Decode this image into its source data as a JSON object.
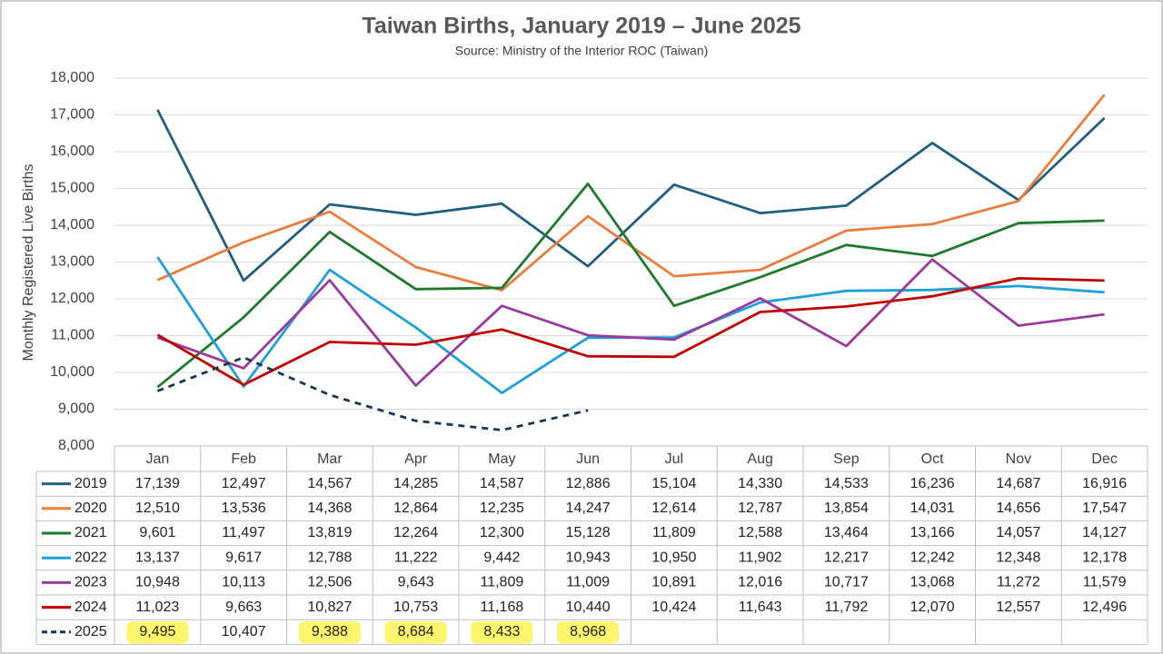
{
  "chart_data": {
    "type": "line",
    "title": "Taiwan Births, January 2019 – June 2025",
    "subtitle": "Source: Ministry of the Interior ROC (Taiwan)",
    "y_label": "Monthly Registered Live Births",
    "categories": [
      "Jan",
      "Feb",
      "Mar",
      "Apr",
      "May",
      "Jun",
      "Jul",
      "Aug",
      "Sep",
      "Oct",
      "Nov",
      "Dec"
    ],
    "ylim": [
      8000,
      18000
    ],
    "yticks": [
      {
        "value": 8000,
        "label": "8,000"
      },
      {
        "value": 9000,
        "label": "9,000"
      },
      {
        "value": 10000,
        "label": "10,000"
      },
      {
        "value": 11000,
        "label": "11,000"
      },
      {
        "value": 12000,
        "label": "12,000"
      },
      {
        "value": 13000,
        "label": "13,000"
      },
      {
        "value": 14000,
        "label": "14,000"
      },
      {
        "value": 15000,
        "label": "15,000"
      },
      {
        "value": 16000,
        "label": "16,000"
      },
      {
        "value": 17000,
        "label": "17,000"
      },
      {
        "value": 18000,
        "label": "18,000"
      }
    ],
    "grid": true,
    "highlight_color": "#fdf56c",
    "series": [
      {
        "name": "2019",
        "color": "#215f7e",
        "dashed": false,
        "values": [
          17139,
          12497,
          14567,
          14285,
          14587,
          12886,
          15104,
          14330,
          14533,
          16236,
          14687,
          16916
        ],
        "value_labels": [
          "17,139",
          "12,497",
          "14,567",
          "14,285",
          "14,587",
          "12,886",
          "15,104",
          "14,330",
          "14,533",
          "16,236",
          "14,687",
          "16,916"
        ]
      },
      {
        "name": "2020",
        "color": "#e97d3e",
        "dashed": false,
        "values": [
          12510,
          13536,
          14368,
          12864,
          12235,
          14247,
          12614,
          12787,
          13854,
          14031,
          14656,
          17547
        ],
        "value_labels": [
          "12,510",
          "13,536",
          "14,368",
          "12,864",
          "12,235",
          "14,247",
          "12,614",
          "12,787",
          "13,854",
          "14,031",
          "14,656",
          "17,547"
        ]
      },
      {
        "name": "2021",
        "color": "#1e7a2e",
        "dashed": false,
        "values": [
          9601,
          11497,
          13819,
          12264,
          12300,
          15128,
          11809,
          12588,
          13464,
          13166,
          14057,
          14127
        ],
        "value_labels": [
          "9,601",
          "11,497",
          "13,819",
          "12,264",
          "12,300",
          "15,128",
          "11,809",
          "12,588",
          "13,464",
          "13,166",
          "14,057",
          "14,127"
        ]
      },
      {
        "name": "2022",
        "color": "#1fa0d6",
        "dashed": false,
        "values": [
          13137,
          9617,
          12788,
          11222,
          9442,
          10943,
          10950,
          11902,
          12217,
          12242,
          12348,
          12178
        ],
        "value_labels": [
          "13,137",
          "9,617",
          "12,788",
          "11,222",
          "9,442",
          "10,943",
          "10,950",
          "11,902",
          "12,217",
          "12,242",
          "12,348",
          "12,178"
        ]
      },
      {
        "name": "2023",
        "color": "#993b9e",
        "dashed": false,
        "values": [
          10948,
          10113,
          12506,
          9643,
          11809,
          11009,
          10891,
          12016,
          10717,
          13068,
          11272,
          11579
        ],
        "value_labels": [
          "10,948",
          "10,113",
          "12,506",
          "9,643",
          "11,809",
          "11,009",
          "10,891",
          "12,016",
          "10,717",
          "13,068",
          "11,272",
          "11,579"
        ]
      },
      {
        "name": "2024",
        "color": "#c00000",
        "dashed": false,
        "values": [
          11023,
          9663,
          10827,
          10753,
          11168,
          10440,
          10424,
          11643,
          11792,
          12070,
          12557,
          12496
        ],
        "value_labels": [
          "11,023",
          "9,663",
          "10,827",
          "10,753",
          "11,168",
          "10,440",
          "10,424",
          "11,643",
          "11,792",
          "12,070",
          "12,557",
          "12,496"
        ]
      },
      {
        "name": "2025",
        "color": "#1c3551",
        "dashed": true,
        "values": [
          9495,
          10407,
          9388,
          8684,
          8433,
          8968,
          null,
          null,
          null,
          null,
          null,
          null
        ],
        "value_labels": [
          "9,495",
          "10,407",
          "9,388",
          "8,684",
          "8,433",
          "8,968",
          null,
          null,
          null,
          null,
          null,
          null
        ],
        "highlighted": [
          0,
          2,
          3,
          4,
          5
        ]
      }
    ]
  }
}
